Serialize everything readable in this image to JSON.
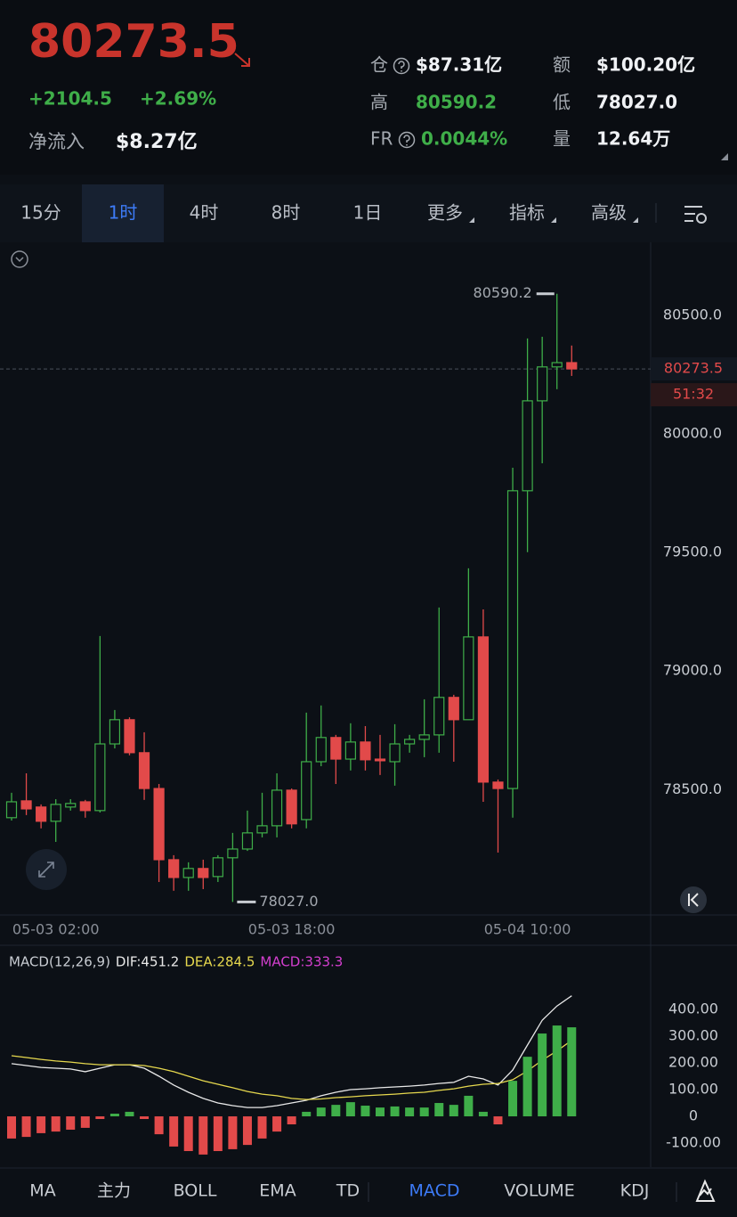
{
  "header": {
    "price": "80273.5",
    "change": "+2104.5",
    "change_pct": "+2.69%",
    "net_inflow_label": "净流入",
    "net_inflow": "$8.27亿",
    "stats": [
      {
        "label": "仓",
        "value": "$87.31亿"
      },
      {
        "label": "额",
        "value": "$100.20亿"
      },
      {
        "label": "高",
        "value": "80590.2"
      },
      {
        "label": "低",
        "value": "78027.0"
      },
      {
        "label": "FR",
        "value": "0.0044%"
      },
      {
        "label": "量",
        "value": "12.64万"
      }
    ]
  },
  "tabs": [
    "15分",
    "1时",
    "4时",
    "8时",
    "1日",
    "更多",
    "指标",
    "高级"
  ],
  "active_tab": 1,
  "indicator_tabs": [
    "MA",
    "主力",
    "BOLL",
    "EMA",
    "TD",
    "MACD",
    "VOLUME",
    "KDJ"
  ],
  "active_indicator": 5,
  "chart_data": [
    {
      "type": "candlestick",
      "categories": [
        null,
        null,
        null,
        "05-03 02:00",
        null,
        null,
        null,
        null,
        null,
        null,
        null,
        null,
        null,
        null,
        null,
        null,
        null,
        null,
        null,
        "05-03 18:00",
        null,
        null,
        null,
        null,
        null,
        null,
        null,
        null,
        null,
        null,
        null,
        null,
        null,
        null,
        null,
        "05-04 10:00",
        null,
        null,
        null
      ],
      "open": [
        78382,
        78453,
        78427,
        78367,
        78427,
        78449,
        78412,
        78693,
        78795,
        78656,
        78505,
        78205,
        78130,
        78168,
        78134,
        78213,
        78250,
        78318,
        78348,
        78498,
        78374,
        78618,
        78720,
        78629,
        78701,
        78629,
        78618,
        78693,
        78712,
        78731,
        78889,
        78795,
        79144,
        78532,
        78505,
        79760,
        80139,
        80282,
        80300
      ],
      "high": [
        78487,
        78569,
        78438,
        78460,
        78460,
        78457,
        79148,
        78836,
        78805,
        78742,
        78524,
        78224,
        78194,
        78205,
        78224,
        78318,
        78412,
        78487,
        78569,
        78505,
        78825,
        78855,
        78731,
        78780,
        78768,
        78731,
        78776,
        78731,
        78881,
        79268,
        78900,
        79433,
        79260,
        78543,
        79857,
        80402,
        80409,
        80590.2,
        80372
      ],
      "low": [
        78370,
        78393,
        78337,
        78280,
        78412,
        78382,
        78404,
        78674,
        78645,
        78457,
        78111,
        78074,
        78074,
        78081,
        78111,
        78027,
        78242,
        78299,
        78299,
        78337,
        78337,
        78599,
        78524,
        78581,
        78581,
        78562,
        78517,
        78656,
        78637,
        78656,
        78618,
        78795,
        78449,
        78235,
        78382,
        79501,
        79876,
        80188,
        80244
      ],
      "close": [
        78449,
        78419,
        78367,
        78438,
        78442,
        78412,
        78693,
        78795,
        78656,
        78505,
        78205,
        78130,
        78168,
        78130,
        78213,
        78250,
        78318,
        78348,
        78498,
        78356,
        78618,
        78720,
        78629,
        78701,
        78626,
        78622,
        78693,
        78712,
        78731,
        78889,
        78795,
        79144,
        78532,
        78505,
        79760,
        80139,
        80282,
        80300,
        80273.5
      ],
      "up_color": "#3fae49",
      "down_color": "#e24a4a",
      "ylim": [
        77972,
        80807
      ],
      "yticks": [
        {
          "value": 78500,
          "label": "78500.0"
        },
        {
          "value": 79000,
          "label": "79000.0"
        },
        {
          "value": 79500,
          "label": "79500.0"
        },
        {
          "value": 80000,
          "label": "80000.0"
        },
        {
          "value": 80500,
          "label": "80500.0"
        }
      ],
      "annotations": [
        {
          "value": 80590.2,
          "label": "80590.2"
        },
        {
          "value": 78027,
          "label": "78027.0"
        }
      ],
      "last_price": {
        "value": 80273.5,
        "label": "80273.5"
      },
      "countdown": "51:32"
    },
    {
      "type": "macd",
      "title": "MACD(12,26,9)",
      "series": [
        {
          "name": "DIF:451.2",
          "color": "#e8e8e8",
          "kind": "line",
          "values": [
            197,
            190,
            183,
            180,
            177,
            167,
            180,
            193,
            193,
            180,
            150,
            117,
            90,
            67,
            50,
            40,
            33,
            33,
            40,
            50,
            60,
            77,
            90,
            100,
            103,
            107,
            110,
            113,
            117,
            123,
            127,
            150,
            140,
            117,
            173,
            267,
            360,
            413,
            451.2
          ]
        },
        {
          "name": "DEA:284.5",
          "color": "#e6d84e",
          "kind": "line",
          "values": [
            227,
            220,
            213,
            207,
            203,
            197,
            193,
            193,
            193,
            190,
            180,
            167,
            150,
            133,
            120,
            107,
            93,
            83,
            77,
            67,
            63,
            65,
            70,
            73,
            77,
            80,
            83,
            87,
            90,
            97,
            103,
            113,
            120,
            123,
            137,
            170,
            210,
            245,
            284.5
          ]
        },
        {
          "name": "MACD:333.3",
          "color": "#d53fd0",
          "kind": "bar",
          "up_color": "#3fae49",
          "down_color": "#e24a4a",
          "values": [
            -83,
            -77,
            -63,
            -57,
            -50,
            -43,
            -10,
            10,
            17,
            -10,
            -67,
            -113,
            -130,
            -143,
            -130,
            -123,
            -107,
            -83,
            -57,
            -30,
            17,
            33,
            43,
            53,
            40,
            33,
            37,
            33,
            33,
            50,
            43,
            77,
            17,
            -30,
            133,
            223,
            310,
            340,
            333.3
          ]
        }
      ],
      "ylim": [
        -190,
        637
      ],
      "yticks": [
        {
          "value": -100,
          "label": "-100.00"
        },
        0,
        {
          "value": 100,
          "label": "100.00"
        },
        {
          "value": 200,
          "label": "200.00"
        },
        {
          "value": 300,
          "label": "300.00"
        },
        {
          "value": 400,
          "label": "400.00"
        }
      ]
    }
  ]
}
